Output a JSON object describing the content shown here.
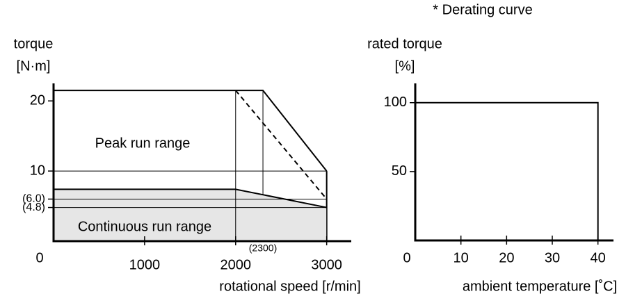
{
  "chart_data": [
    {
      "type": "area",
      "xlabel": "rotational speed [r/min]",
      "ylabel": [
        "torque",
        "[N·m]"
      ],
      "xlim": [
        0,
        3270
      ],
      "ylim": [
        0,
        22.5
      ],
      "xticks": [
        0,
        1000,
        2000,
        3000
      ],
      "yticks": [
        {
          "value": 4.8,
          "label": "(4.8)"
        },
        {
          "value": 6.0,
          "label": "(6.0)"
        },
        10,
        20
      ],
      "grid": true,
      "series": [
        {
          "name": "Peak run range",
          "color": "#000000",
          "dash": false,
          "fill": null,
          "drop_lines": true,
          "x": [
            0,
            2300,
            3000
          ],
          "values": [
            21.5,
            21.5,
            10
          ]
        },
        {
          "name": "Continuous run range",
          "color": "#000000",
          "dash": false,
          "fill": "#e6e6e6",
          "drop_lines": false,
          "x": [
            0,
            2000,
            3000
          ],
          "values": [
            7.4,
            7.4,
            4.8
          ]
        },
        {
          "color": "#000000",
          "dash": true,
          "fill": null,
          "drop_lines": true,
          "x": [
            2000,
            3000
          ],
          "values": [
            21.5,
            6.0
          ]
        }
      ],
      "annotations": [
        "(2300)"
      ]
    },
    {
      "type": "line",
      "title": "* Derating curve",
      "xlabel": "ambient temperature [˚C]",
      "ylabel": [
        "rated torque",
        "[%]"
      ],
      "xlim": [
        0,
        43.4
      ],
      "ylim": [
        0,
        114
      ],
      "xticks": [
        0,
        10,
        20,
        30,
        40
      ],
      "yticks": [
        50,
        100
      ],
      "series": [
        {
          "color": "#000000",
          "x": [
            0,
            40,
            40
          ],
          "values": [
            100,
            100,
            0
          ]
        }
      ]
    }
  ]
}
